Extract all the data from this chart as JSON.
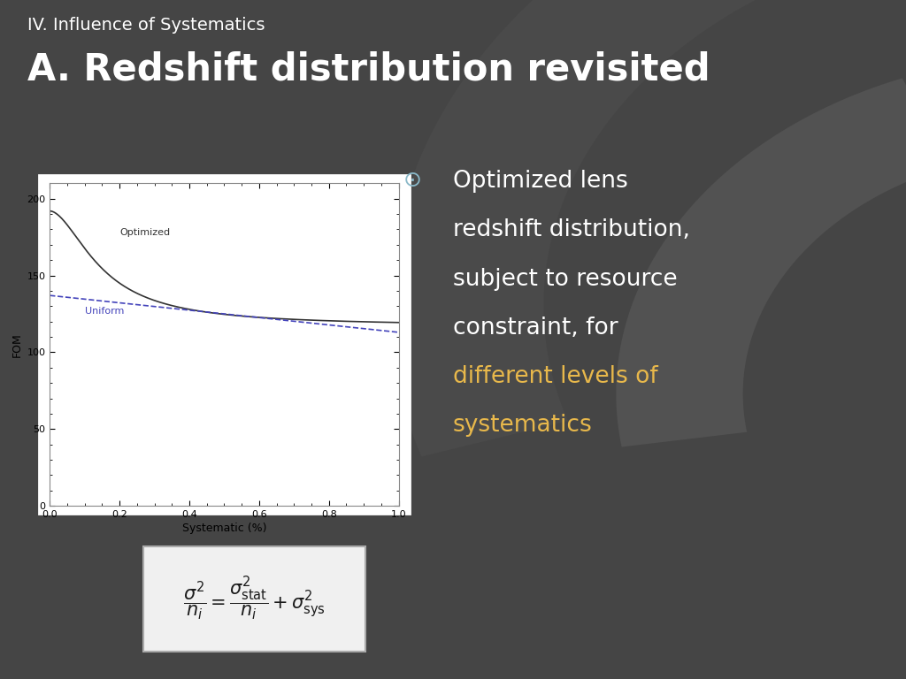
{
  "bg_color": "#454545",
  "bg_dark": "#3a3a3a",
  "title_small": "IV. Influence of Systematics",
  "title_large": "A. Redshift distribution revisited",
  "title_small_color": "#ffffff",
  "title_large_color": "#ffffff",
  "bullet_symbol": "⊙",
  "bullet_lines_normal": [
    "Optimized lens",
    "redshift distribution,",
    "subject to resource",
    "constraint, for"
  ],
  "bullet_lines_highlight": [
    "different levels of",
    "systematics"
  ],
  "bullet_text_color": "#ffffff",
  "bullet_highlight_color": "#e8b84b",
  "bullet_symbol_color": "#8ab8c8",
  "plot_bg": "#ffffff",
  "plot_border": "#cccccc",
  "optimized_color": "#333333",
  "uniform_color": "#4444bb",
  "xlabel": "Systematic (%)",
  "ylabel": "FOM",
  "xlim": [
    0,
    1
  ],
  "ylim": [
    0,
    210
  ],
  "xticks": [
    0,
    0.2,
    0.4,
    0.6,
    0.8,
    1
  ],
  "yticks": [
    0,
    50,
    100,
    150,
    200
  ],
  "optimized_label": "Optimized",
  "uniform_label": "Uniform",
  "formula_box_color": "#f0f0f0",
  "formula_box_border": "#aaaaaa",
  "curve_arc1_color": "#555555",
  "curve_arc2_color": "#4a4a4a"
}
